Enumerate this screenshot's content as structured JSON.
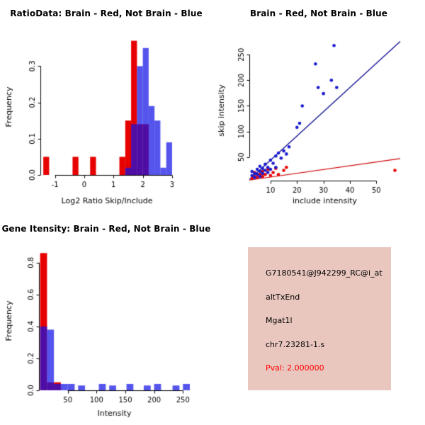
{
  "page": {
    "background": "#FFFFFF"
  },
  "chart_data": [
    {
      "id": "ratio-histogram",
      "type": "bar",
      "title": "RatioData: Brain - Red, Not Brain - Blue",
      "xlabel": "Log2 Ratio Skip/Include",
      "ylabel": "Frequency",
      "xlim": [
        -1.5,
        3.05
      ],
      "ylim": [
        0,
        0.375
      ],
      "xticks": [
        -1,
        0,
        1,
        2,
        3
      ],
      "xtick_labels": [
        "-1",
        "0",
        "1",
        "2",
        "3"
      ],
      "yticks": [
        0,
        0.1,
        0.2,
        0.3
      ],
      "ytick_labels": [
        "0.0",
        "0.1",
        "0.2",
        "0.3"
      ],
      "grid": false,
      "bin_width": 0.2,
      "series": [
        {
          "name": "Brain",
          "fill": "#E60000",
          "bins": [
            [
              -1.4,
              0.05
            ],
            [
              -0.4,
              0.05
            ],
            [
              0.2,
              0.05
            ],
            [
              1.2,
              0.05
            ],
            [
              1.4,
              0.15
            ],
            [
              1.6,
              0.37
            ],
            [
              1.8,
              0.14
            ],
            [
              2.0,
              0.14
            ]
          ]
        },
        {
          "name": "Not Brain",
          "fill": "rgba(20,20,230,0.72)",
          "bins": [
            [
              1.4,
              0.02
            ],
            [
              1.6,
              0.14
            ],
            [
              1.8,
              0.3
            ],
            [
              2.0,
              0.35
            ],
            [
              2.2,
              0.19
            ],
            [
              2.4,
              0.15
            ],
            [
              2.6,
              0.02
            ],
            [
              2.8,
              0.09
            ]
          ]
        }
      ],
      "margins": {
        "l": 57,
        "r": 55,
        "t": 55,
        "b": 53
      }
    },
    {
      "id": "intensity-scatter",
      "type": "scatter",
      "title": "Brain - Red, Not Brain - Blue",
      "xlabel": "include intensity",
      "ylabel": "skip intensity",
      "xlim": [
        2,
        59
      ],
      "ylim": [
        4,
        278
      ],
      "xticks": [
        10,
        20,
        30,
        40,
        50
      ],
      "xtick_labels": [
        "10",
        "20",
        "30",
        "40",
        "50"
      ],
      "yticks": [
        50,
        100,
        150,
        200,
        250
      ],
      "ytick_labels": [
        "50",
        "100",
        "150",
        "200",
        "250"
      ],
      "grid": false,
      "series": [
        {
          "name": "Brain",
          "color": "#E60000",
          "points": [
            [
              3,
              8
            ],
            [
              4,
              12
            ],
            [
              4,
              20
            ],
            [
              5,
              10
            ],
            [
              6,
              16
            ],
            [
              7,
              12
            ],
            [
              7,
              22
            ],
            [
              8,
              16
            ],
            [
              9,
              26
            ],
            [
              10,
              14
            ],
            [
              11,
              20
            ],
            [
              12,
              28
            ],
            [
              13,
              16
            ],
            [
              15,
              24
            ],
            [
              16,
              30
            ],
            [
              57,
              24
            ]
          ]
        },
        {
          "name": "Not Brain",
          "color": "#1A1ACC",
          "points": [
            [
              3,
              14
            ],
            [
              3,
              22
            ],
            [
              4,
              10
            ],
            [
              4,
              18
            ],
            [
              5,
              16
            ],
            [
              5,
              26
            ],
            [
              6,
              12
            ],
            [
              6,
              22
            ],
            [
              6,
              32
            ],
            [
              7,
              18
            ],
            [
              7,
              28
            ],
            [
              8,
              24
            ],
            [
              8,
              36
            ],
            [
              9,
              20
            ],
            [
              9,
              30
            ],
            [
              10,
              26
            ],
            [
              10,
              44
            ],
            [
              11,
              38
            ],
            [
              12,
              30
            ],
            [
              12,
              52
            ],
            [
              13,
              58
            ],
            [
              14,
              48
            ],
            [
              15,
              62
            ],
            [
              16,
              56
            ],
            [
              17,
              70
            ],
            [
              20,
              108
            ],
            [
              21,
              116
            ],
            [
              22,
              150
            ],
            [
              27,
              232
            ],
            [
              28,
              186
            ],
            [
              30,
              174
            ],
            [
              33,
              200
            ],
            [
              34,
              268
            ],
            [
              35,
              186
            ]
          ]
        }
      ],
      "lines": [
        {
          "name": "not-brain-fit",
          "color": "#00008B",
          "x1": 2,
          "y1": 6,
          "x2": 59,
          "y2": 276
        },
        {
          "name": "brain-fit",
          "color": "#CC0000",
          "x1": 2,
          "y1": 5,
          "x2": 59,
          "y2": 47
        }
      ],
      "margins": {
        "l": 52,
        "r": 35,
        "t": 57,
        "b": 45
      }
    },
    {
      "id": "gene-intensity-histogram",
      "type": "bar",
      "title": "Gene Itensity: Brain - Red, Not Brain - Blue",
      "xlabel": "Intensity",
      "ylabel": "Frequency",
      "xlim": [
        0,
        262
      ],
      "ylim": [
        0,
        0.87
      ],
      "xticks": [
        50,
        100,
        150,
        200,
        250
      ],
      "xtick_labels": [
        "50",
        "100",
        "150",
        "200",
        "250"
      ],
      "yticks": [
        0,
        0.2,
        0.4,
        0.6,
        0.8
      ],
      "ytick_labels": [
        "0.0",
        "0.2",
        "0.4",
        "0.6",
        "0.8"
      ],
      "grid": false,
      "bin_width": 12,
      "series": [
        {
          "name": "Brain",
          "fill": "#E60000",
          "bins": [
            [
              2,
              0.86
            ],
            [
              14,
              0.05
            ],
            [
              26,
              0.05
            ]
          ]
        },
        {
          "name": "Not Brain",
          "fill": "rgba(20,20,230,0.72)",
          "bins": [
            [
              2,
              0.4
            ],
            [
              14,
              0.38
            ],
            [
              26,
              0.04
            ],
            [
              38,
              0.04
            ],
            [
              50,
              0.04
            ],
            [
              68,
              0.03
            ],
            [
              104,
              0.04
            ],
            [
              122,
              0.03
            ],
            [
              152,
              0.04
            ],
            [
              182,
              0.03
            ],
            [
              200,
              0.04
            ],
            [
              232,
              0.03
            ],
            [
              250,
              0.04
            ]
          ]
        }
      ],
      "margins": {
        "l": 55,
        "r": 32,
        "t": 55,
        "b": 49
      }
    }
  ],
  "info_panel": {
    "background": "#E9C7BE",
    "lines": [
      {
        "text": "G7180541@J942299_RC@i_at",
        "color": "#000000"
      },
      {
        "text": "altTxEnd",
        "color": "#000000"
      },
      {
        "text": "Mgat1l",
        "color": "#000000"
      },
      {
        "text": "chr7.23281-1.s",
        "color": "#000000"
      },
      {
        "text": "Pval: 2.000000",
        "color": "#FF0000"
      }
    ]
  }
}
